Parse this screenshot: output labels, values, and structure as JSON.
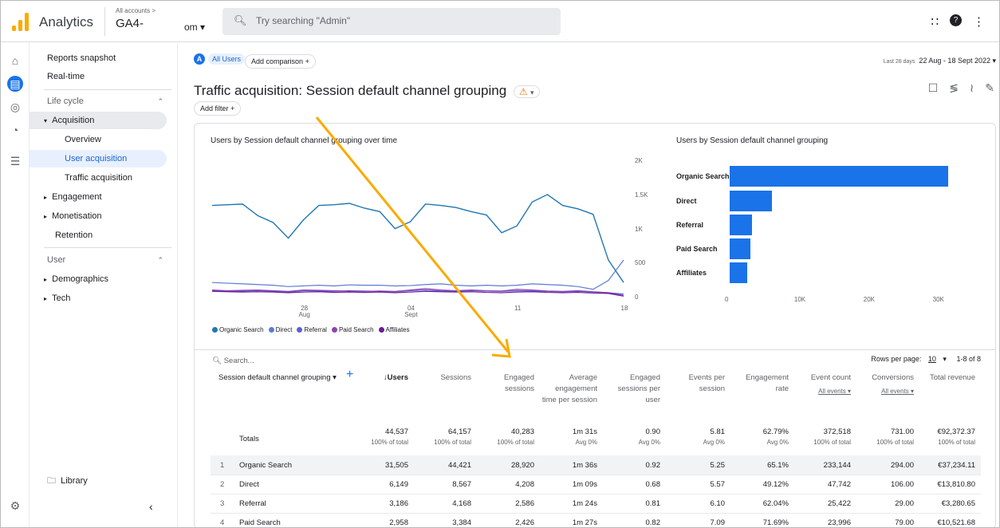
{
  "header": {
    "app_name": "Analytics",
    "account_small": "All accounts >",
    "account_main": "GA4-",
    "account_suffix": "om ▾",
    "search_placeholder": "Try searching \"Admin\""
  },
  "sidebar": {
    "reports_snapshot": "Reports snapshot",
    "realtime": "Real-time",
    "life_cycle": "Life cycle",
    "acquisition": "Acquisition",
    "overview": "Overview",
    "user_acquisition": "User acquisition",
    "traffic_acquisition": "Traffic acquisition",
    "engagement": "Engagement",
    "monetisation": "Monetisation",
    "retention": "Retention",
    "user": "User",
    "demographics": "Demographics",
    "tech": "Tech",
    "library": "Library"
  },
  "toolbar": {
    "all_users": "All Users",
    "add_comparison": "Add comparison",
    "date_prefix": "Last 28 days",
    "date_range": "22 Aug - 18 Sept 2022 ▾",
    "add_filter": "Add filter"
  },
  "page": {
    "title": "Traffic acquisition: Session default channel grouping"
  },
  "colors": {
    "blue": "#1a73e8",
    "orange": "#f9ab00"
  },
  "line_chart": {
    "title": "Users by Session default channel grouping over time",
    "y_ticks": [
      "2K",
      "1.5K",
      "1K",
      "500",
      "0"
    ],
    "x_ticks": [
      "28 Aug",
      "04 Sept",
      "11",
      "18"
    ],
    "legend": [
      "Organic Search",
      "Direct",
      "Referral",
      "Paid Search",
      "Affiliates"
    ]
  },
  "chart_data": [
    {
      "type": "line",
      "title": "Users by Session default channel grouping over time",
      "x": [
        "22",
        "23",
        "24",
        "25",
        "26",
        "27",
        "28",
        "29",
        "30",
        "31",
        "01",
        "02",
        "03",
        "04",
        "05",
        "06",
        "07",
        "08",
        "09",
        "10",
        "11",
        "12",
        "13",
        "14",
        "15",
        "16",
        "17",
        "18"
      ],
      "series": [
        {
          "name": "Organic Search",
          "values": [
            1350,
            1360,
            1370,
            1200,
            1100,
            870,
            1140,
            1350,
            1360,
            1380,
            1310,
            1260,
            1010,
            1110,
            1370,
            1350,
            1320,
            1260,
            1210,
            950,
            1050,
            1400,
            1510,
            1350,
            1300,
            1220,
            550,
            220
          ]
        },
        {
          "name": "Direct",
          "values": [
            220,
            210,
            200,
            190,
            180,
            160,
            170,
            180,
            170,
            185,
            180,
            180,
            170,
            175,
            190,
            200,
            180,
            170,
            180,
            170,
            180,
            200,
            190,
            180,
            160,
            120,
            250,
            550
          ]
        },
        {
          "name": "Referral",
          "values": [
            100,
            90,
            95,
            100,
            90,
            80,
            100,
            95,
            90,
            100,
            95,
            90,
            85,
            100,
            110,
            95,
            90,
            100,
            95,
            90,
            100,
            95,
            90,
            85,
            90,
            80,
            70,
            50
          ]
        },
        {
          "name": "Paid Search",
          "values": [
            110,
            100,
            105,
            110,
            100,
            90,
            110,
            105,
            100,
            95,
            90,
            95,
            90,
            110,
            130,
            110,
            100,
            110,
            100,
            95,
            120,
            110,
            95,
            90,
            100,
            85,
            70,
            30
          ]
        },
        {
          "name": "Affiliates",
          "values": [
            90,
            85,
            80,
            85,
            80,
            70,
            80,
            85,
            75,
            80,
            75,
            80,
            70,
            80,
            90,
            85,
            80,
            85,
            75,
            70,
            80,
            85,
            75,
            70,
            75,
            65,
            60,
            20
          ]
        }
      ]
    },
    {
      "type": "bar",
      "title": "Users by Session default channel grouping",
      "categories": [
        "Organic Search",
        "Direct",
        "Referral",
        "Paid Search",
        "Affiliates"
      ],
      "values": [
        31505,
        6149,
        3186,
        2958,
        2500
      ],
      "x_ticks": [
        "0",
        "10K",
        "20K",
        "30K"
      ],
      "xlim": [
        0,
        32000
      ]
    }
  ],
  "table": {
    "search_placeholder": "Search...",
    "rows_per_page_label": "Rows per page:",
    "rows_per_page": "10",
    "pagination": "1-8 of 8",
    "dim_header": "Session default channel grouping ▾",
    "columns": [
      "↓Users",
      "Sessions",
      "Engaged sessions",
      "Average engagement time per session",
      "Engaged sessions per user",
      "Events per session",
      "Engagement rate",
      "Event count",
      "Conversions",
      "Total revenue"
    ],
    "event_filter": "All events ▾",
    "totals_label": "Totals",
    "totals": [
      "44,537",
      "64,157",
      "40,283",
      "1m 31s",
      "0.90",
      "5.81",
      "62.79%",
      "372,518",
      "731.00",
      "€92,372.37"
    ],
    "totals_sub": [
      "100% of total",
      "100% of total",
      "100% of total",
      "Avg 0%",
      "Avg 0%",
      "Avg 0%",
      "Avg 0%",
      "100% of total",
      "100% of total",
      "100% of total"
    ],
    "rows": [
      {
        "n": "1",
        "name": "Organic Search",
        "vals": [
          "31,505",
          "44,421",
          "28,920",
          "1m 36s",
          "0.92",
          "5.25",
          "65.1%",
          "233,144",
          "294.00",
          "€37,234.11"
        ]
      },
      {
        "n": "2",
        "name": "Direct",
        "vals": [
          "6,149",
          "8,567",
          "4,208",
          "1m 09s",
          "0.68",
          "5.57",
          "49.12%",
          "47,742",
          "106.00",
          "€13,810.80"
        ]
      },
      {
        "n": "3",
        "name": "Referral",
        "vals": [
          "3,186",
          "4,168",
          "2,586",
          "1m 24s",
          "0.81",
          "6.10",
          "62.04%",
          "25,422",
          "29.00",
          "€3,280.65"
        ]
      },
      {
        "n": "4",
        "name": "Paid Search",
        "vals": [
          "2,958",
          "3,384",
          "2,426",
          "1m 27s",
          "0.82",
          "7.09",
          "71.69%",
          "23,996",
          "79.00",
          "€10,521.68"
        ]
      }
    ]
  }
}
